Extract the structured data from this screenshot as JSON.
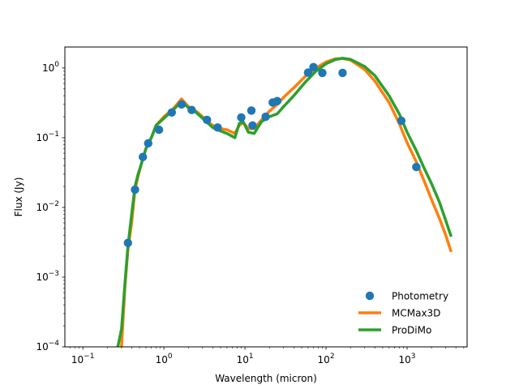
{
  "chart_data": {
    "type": "line",
    "xlabel": "Wavelength (micron)",
    "ylabel": "Flux (Jy)",
    "xscale": "log",
    "yscale": "log",
    "xlim": [
      0.06,
      5500
    ],
    "ylim": [
      0.0001,
      2
    ],
    "x_ticks": [
      {
        "value": 0.1,
        "base": "10",
        "exp": "−1"
      },
      {
        "value": 1,
        "base": "10",
        "exp": "0"
      },
      {
        "value": 10,
        "base": "10",
        "exp": "1"
      },
      {
        "value": 100,
        "base": "10",
        "exp": "2"
      },
      {
        "value": 1000,
        "base": "10",
        "exp": "3"
      }
    ],
    "y_ticks": [
      {
        "value": 0.0001,
        "base": "10",
        "exp": "−4"
      },
      {
        "value": 0.001,
        "base": "10",
        "exp": "−3"
      },
      {
        "value": 0.01,
        "base": "10",
        "exp": "−2"
      },
      {
        "value": 0.1,
        "base": "10",
        "exp": "−1"
      },
      {
        "value": 1,
        "base": "10",
        "exp": "0"
      }
    ],
    "legend": {
      "placement": "lower-right",
      "entries": [
        "Photometry",
        "MCMax3D",
        "ProDiMo"
      ]
    },
    "series": [
      {
        "name": "Photometry",
        "kind": "scatter",
        "color": "#1f77b4",
        "points": [
          [
            0.36,
            0.0031
          ],
          [
            0.44,
            0.018
          ],
          [
            0.55,
            0.053
          ],
          [
            0.64,
            0.083
          ],
          [
            0.87,
            0.13
          ],
          [
            1.25,
            0.23
          ],
          [
            1.65,
            0.3
          ],
          [
            2.2,
            0.25
          ],
          [
            3.4,
            0.18
          ],
          [
            4.6,
            0.14
          ],
          [
            9,
            0.195
          ],
          [
            12,
            0.245
          ],
          [
            12.4,
            0.15
          ],
          [
            18,
            0.2
          ],
          [
            22,
            0.32
          ],
          [
            25,
            0.335
          ],
          [
            60,
            0.86
          ],
          [
            70,
            1.03
          ],
          [
            90,
            0.85
          ],
          [
            160,
            0.85
          ],
          [
            850,
            0.175
          ],
          [
            1300,
            0.038
          ]
        ]
      },
      {
        "name": "MCMax3D",
        "kind": "line",
        "color": "#ff7f0e",
        "points": [
          [
            0.3,
            0.0001
          ],
          [
            0.33,
            0.0007
          ],
          [
            0.36,
            0.0025
          ],
          [
            0.4,
            0.006
          ],
          [
            0.44,
            0.018
          ],
          [
            0.48,
            0.028
          ],
          [
            0.52,
            0.04
          ],
          [
            0.6,
            0.07
          ],
          [
            0.7,
            0.1
          ],
          [
            0.8,
            0.15
          ],
          [
            1.0,
            0.2
          ],
          [
            1.3,
            0.26
          ],
          [
            1.65,
            0.36
          ],
          [
            2.0,
            0.28
          ],
          [
            2.5,
            0.24
          ],
          [
            3.0,
            0.2
          ],
          [
            4.0,
            0.15
          ],
          [
            5.0,
            0.135
          ],
          [
            6.0,
            0.13
          ],
          [
            7.5,
            0.115
          ],
          [
            8.5,
            0.15
          ],
          [
            9.5,
            0.165
          ],
          [
            11,
            0.135
          ],
          [
            13,
            0.135
          ],
          [
            16,
            0.18
          ],
          [
            20,
            0.24
          ],
          [
            25,
            0.3
          ],
          [
            30,
            0.38
          ],
          [
            40,
            0.52
          ],
          [
            55,
            0.75
          ],
          [
            75,
            1.0
          ],
          [
            100,
            1.22
          ],
          [
            130,
            1.35
          ],
          [
            160,
            1.37
          ],
          [
            200,
            1.3
          ],
          [
            300,
            0.95
          ],
          [
            400,
            0.65
          ],
          [
            600,
            0.32
          ],
          [
            800,
            0.16
          ],
          [
            1000,
            0.085
          ],
          [
            1300,
            0.045
          ],
          [
            1600,
            0.025
          ],
          [
            2000,
            0.013
          ],
          [
            2500,
            0.007
          ],
          [
            3000,
            0.004
          ],
          [
            3500,
            0.0023
          ]
        ]
      },
      {
        "name": "ProDiMo",
        "kind": "line",
        "color": "#2ca02c",
        "points": [
          [
            0.27,
            0.0001
          ],
          [
            0.3,
            0.00018
          ],
          [
            0.33,
            0.0008
          ],
          [
            0.36,
            0.0028
          ],
          [
            0.4,
            0.008
          ],
          [
            0.44,
            0.02
          ],
          [
            0.48,
            0.03
          ],
          [
            0.52,
            0.04
          ],
          [
            0.6,
            0.07
          ],
          [
            0.7,
            0.1
          ],
          [
            0.8,
            0.15
          ],
          [
            1.0,
            0.19
          ],
          [
            1.3,
            0.25
          ],
          [
            1.65,
            0.33
          ],
          [
            2.0,
            0.27
          ],
          [
            2.5,
            0.23
          ],
          [
            3.0,
            0.19
          ],
          [
            4.0,
            0.14
          ],
          [
            5.0,
            0.125
          ],
          [
            6.0,
            0.115
          ],
          [
            7.5,
            0.1
          ],
          [
            8.5,
            0.16
          ],
          [
            9.5,
            0.17
          ],
          [
            11,
            0.12
          ],
          [
            13,
            0.115
          ],
          [
            16,
            0.17
          ],
          [
            20,
            0.2
          ],
          [
            25,
            0.22
          ],
          [
            30,
            0.28
          ],
          [
            40,
            0.4
          ],
          [
            55,
            0.62
          ],
          [
            75,
            0.9
          ],
          [
            100,
            1.15
          ],
          [
            130,
            1.32
          ],
          [
            160,
            1.38
          ],
          [
            200,
            1.33
          ],
          [
            300,
            1.05
          ],
          [
            400,
            0.78
          ],
          [
            600,
            0.4
          ],
          [
            800,
            0.22
          ],
          [
            1000,
            0.12
          ],
          [
            1300,
            0.065
          ],
          [
            1600,
            0.038
          ],
          [
            2000,
            0.022
          ],
          [
            2500,
            0.012
          ],
          [
            3000,
            0.0065
          ],
          [
            3500,
            0.0038
          ]
        ]
      }
    ]
  }
}
